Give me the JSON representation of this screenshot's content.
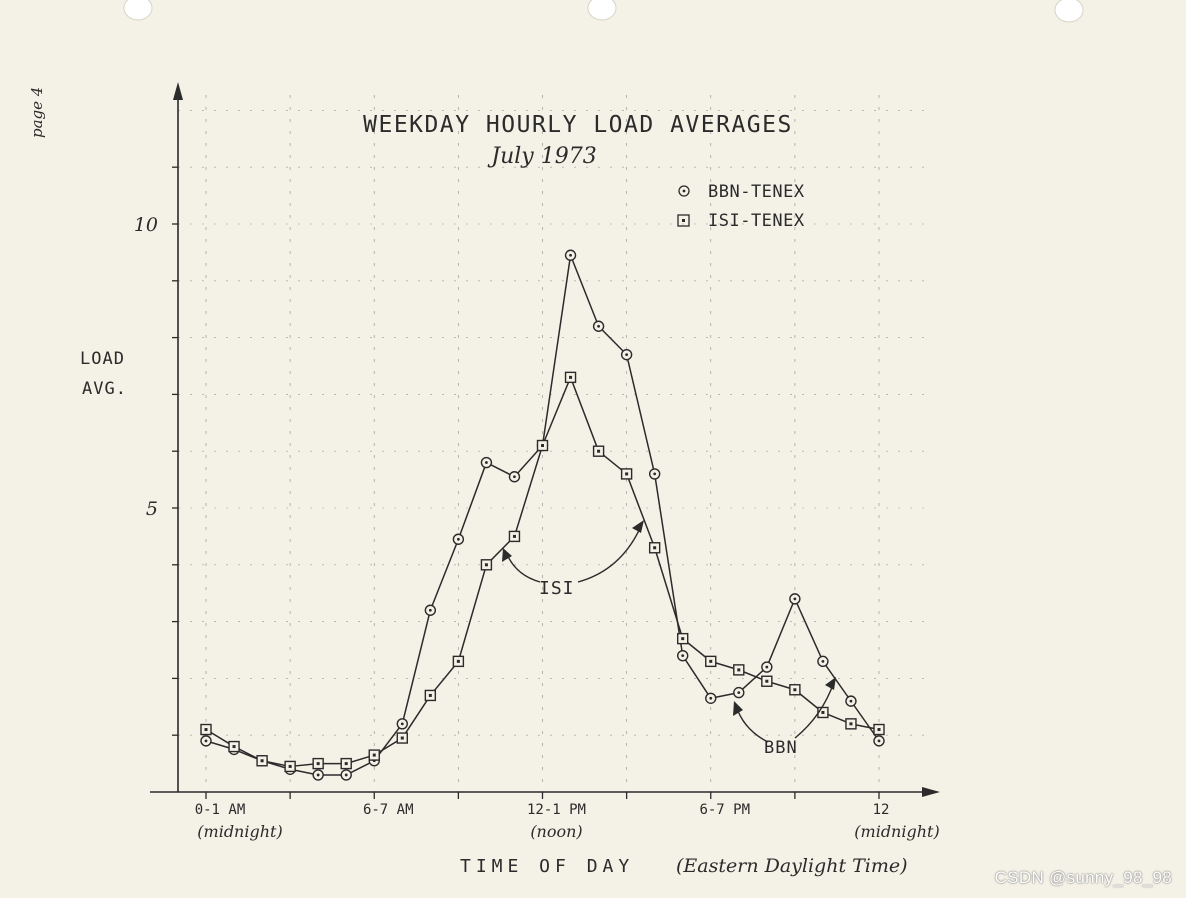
{
  "page_label": "page 4",
  "watermark": "CSDN @sunny_98_98",
  "chart_data": {
    "type": "line",
    "title": "WEEKDAY HOURLY LOAD AVERAGES",
    "subtitle": "July 1973",
    "ylabel": "LOAD AVG.",
    "xlabel": "TIME OF DAY",
    "xlabel_note": "(Eastern Daylight Time)",
    "ylim": [
      0,
      12
    ],
    "yticks": [
      {
        "value": 5,
        "label": "5"
      },
      {
        "value": 10,
        "label": "10"
      }
    ],
    "xlim": [
      0,
      24
    ],
    "xticks": [
      {
        "hour": 0,
        "label": "0-1 AM",
        "sublabel": "(midnight)"
      },
      {
        "hour": 6,
        "label": "6-7 AM",
        "sublabel": ""
      },
      {
        "hour": 12,
        "label": "12-1 PM",
        "sublabel": "(noon)"
      },
      {
        "hour": 18,
        "label": "6-7 PM",
        "sublabel": ""
      },
      {
        "hour": 24,
        "label": "12",
        "sublabel": "(midnight)"
      }
    ],
    "legend_position": "top-right",
    "grid": true,
    "series": [
      {
        "name": "BBN-TENEX",
        "marker": "circle",
        "x": [
          0,
          1,
          2,
          3,
          4,
          5,
          6,
          7,
          8,
          9,
          10,
          11,
          12,
          13,
          14,
          15,
          16,
          17,
          18,
          19,
          20,
          21,
          22,
          23,
          24
        ],
        "values": [
          0.9,
          0.75,
          0.55,
          0.4,
          0.3,
          0.3,
          0.55,
          1.2,
          3.2,
          4.45,
          5.8,
          5.55,
          6.1,
          9.45,
          8.2,
          7.7,
          5.6,
          2.4,
          1.65,
          1.75,
          2.2,
          3.4,
          2.3,
          1.6,
          0.9
        ]
      },
      {
        "name": "ISI-TENEX",
        "marker": "square",
        "x": [
          0,
          1,
          2,
          3,
          4,
          5,
          6,
          7,
          8,
          9,
          10,
          11,
          12,
          13,
          14,
          15,
          16,
          17,
          18,
          19,
          20,
          21,
          22,
          23,
          24
        ],
        "values": [
          1.1,
          0.8,
          0.55,
          0.45,
          0.5,
          0.5,
          0.65,
          0.95,
          1.7,
          2.3,
          4.0,
          4.5,
          6.1,
          7.3,
          6.0,
          5.6,
          4.3,
          2.7,
          2.3,
          2.15,
          1.95,
          1.8,
          1.4,
          1.2,
          1.1
        ]
      }
    ],
    "annotations": [
      {
        "text": "ISI",
        "target_series": "ISI-TENEX"
      },
      {
        "text": "BBN",
        "target_series": "BBN-TENEX"
      }
    ]
  },
  "colors": {
    "paper": "#f4f1e6",
    "ink": "#2b2b2b",
    "grid": "#9a9a9a"
  }
}
